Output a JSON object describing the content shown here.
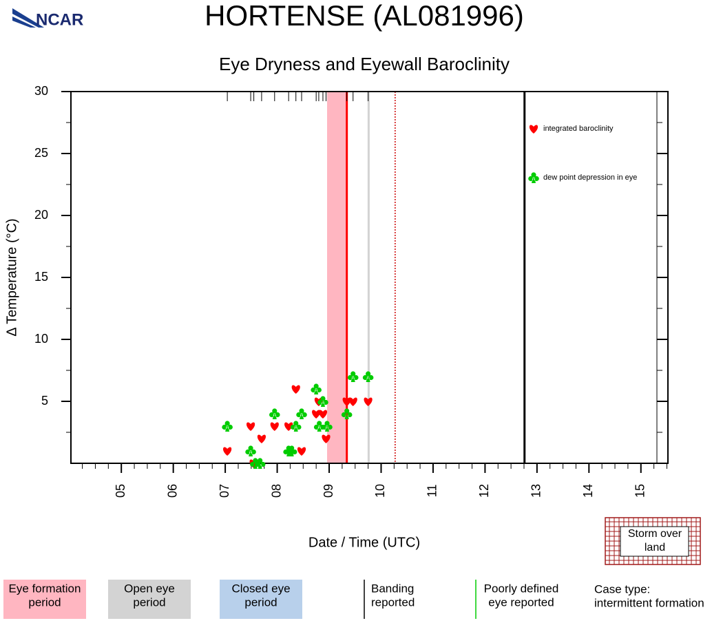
{
  "logo": "NCAR",
  "chart_data": {
    "type": "scatter",
    "title": "HORTENSE (AL081996)",
    "subtitle": "Eye Dryness and Eyewall Baroclinity",
    "xlabel": "Date / Time (UTC)",
    "ylabel": "Δ Temperature (°C)",
    "xlim": [
      4.03,
      15.52
    ],
    "ylim": [
      0,
      30
    ],
    "xticks": [
      {
        "value": 5,
        "label": "05"
      },
      {
        "value": 6,
        "label": "06"
      },
      {
        "value": 7,
        "label": "07"
      },
      {
        "value": 8,
        "label": "08"
      },
      {
        "value": 9,
        "label": "09"
      },
      {
        "value": 10,
        "label": "10"
      },
      {
        "value": 11,
        "label": "11"
      },
      {
        "value": 12,
        "label": "12"
      },
      {
        "value": 13,
        "label": "13"
      },
      {
        "value": 14,
        "label": "14"
      },
      {
        "value": 15,
        "label": "15"
      }
    ],
    "yticks": [
      5,
      10,
      15,
      20,
      25,
      30
    ],
    "series": [
      {
        "name": "integrated baroclinity",
        "color": "#ff0000",
        "marker": "heart",
        "x": [
          7.04,
          7.49,
          7.55,
          7.7,
          7.95,
          8.22,
          8.36,
          8.47,
          8.75,
          8.8,
          8.88,
          8.94,
          9.34,
          9.46,
          9.75
        ],
        "values": [
          1,
          3,
          0,
          2,
          3,
          3,
          6,
          1,
          4,
          5,
          4,
          2,
          5,
          5,
          5
        ]
      },
      {
        "name": "dew point depression in eye",
        "color": "#00cc00",
        "marker": "club",
        "x": [
          7.04,
          7.49,
          7.58,
          7.67,
          7.95,
          8.22,
          8.28,
          8.36,
          8.47,
          8.75,
          8.88,
          8.81,
          8.96,
          9.34,
          9.46,
          9.75
        ],
        "values": [
          3,
          1,
          0,
          0,
          4,
          1,
          1,
          3,
          4,
          6,
          5,
          3,
          3,
          4,
          7,
          7
        ]
      }
    ],
    "periods": [
      {
        "start": 8.96,
        "end": 9.34,
        "color": "#ffb6c1"
      }
    ],
    "vlines": [
      {
        "x": 9.34,
        "color": "#ff0000",
        "width": 3
      },
      {
        "x": 9.76,
        "color": "#d3d3d3",
        "width": 3
      },
      {
        "x": 10.27,
        "color": "#cc0000",
        "width": 1.5,
        "dash": true
      },
      {
        "x": 12.76,
        "color": "#000000",
        "width": 3
      }
    ]
  },
  "key": {
    "eye_formation": {
      "lines": [
        "Eye formation",
        "period"
      ],
      "color": "#ffb6c1"
    },
    "open_eye": {
      "lines": [
        "Open eye",
        "period"
      ],
      "color": "#d3d3d3"
    },
    "closed_eye": {
      "lines": [
        "Closed eye",
        "period"
      ],
      "color": "#b8d0eb"
    },
    "banding": {
      "lines": [
        "Banding",
        "reported"
      ],
      "color": "#000000"
    },
    "poorly_defined": {
      "lines": [
        "Poorly defined",
        "eye reported"
      ],
      "color": "#00cc00"
    },
    "case_type": {
      "lines": [
        "Case type:",
        "intermittent formation"
      ]
    },
    "storm_over_land": {
      "lines": [
        "Storm over",
        "land"
      ],
      "color": "#a01818"
    }
  }
}
